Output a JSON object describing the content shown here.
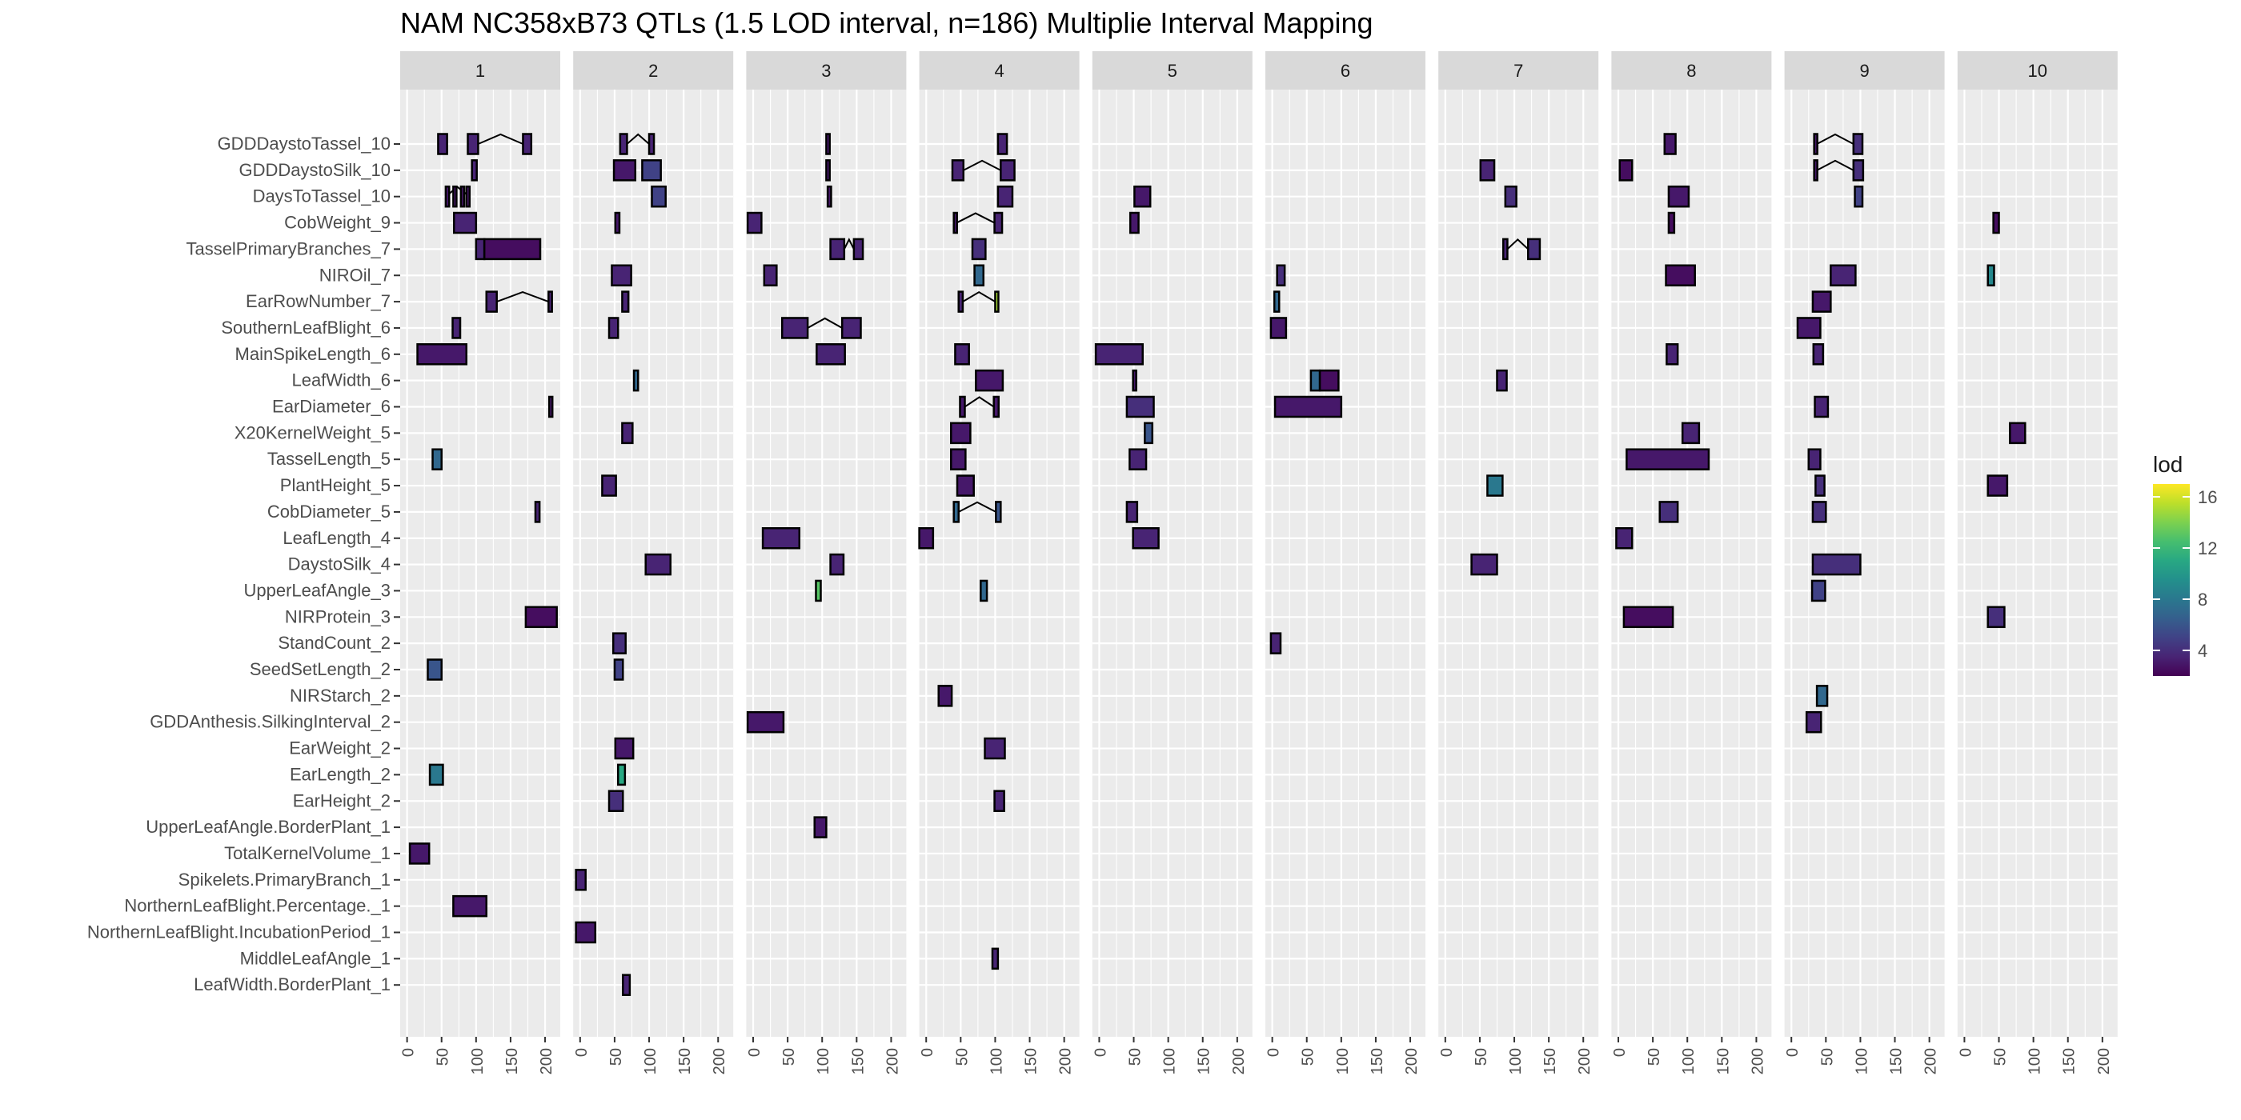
{
  "chart_data": {
    "type": "interval-facets",
    "title": "NAM NC358xB73 QTLs (1.5 LOD interval, n=186) Multiplie Interval Mapping",
    "panels": [
      "1",
      "2",
      "3",
      "4",
      "5",
      "6",
      "7",
      "8",
      "9",
      "10"
    ],
    "x_ticks": [
      0,
      50,
      100,
      150,
      200
    ],
    "xlim": [
      -10,
      222
    ],
    "traits": [
      "GDDDaystoTassel_10",
      "GDDDaystoSilk_10",
      "DaysToTassel_10",
      "CobWeight_9",
      "TasselPrimaryBranches_7",
      "NIROil_7",
      "EarRowNumber_7",
      "SouthernLeafBlight_6",
      "MainSpikeLength_6",
      "LeafWidth_6",
      "EarDiameter_6",
      "X20KernelWeight_5",
      "TasselLength_5",
      "PlantHeight_5",
      "CobDiameter_5",
      "LeafLength_4",
      "DaystoSilk_4",
      "UpperLeafAngle_3",
      "NIRProtein_3",
      "StandCount_2",
      "SeedSetLength_2",
      "NIRStarch_2",
      "GDDAnthesis.SilkingInterval_2",
      "EarWeight_2",
      "EarLength_2",
      "EarHeight_2",
      "UpperLeafAngle.BorderPlant_1",
      "TotalKernelVolume_1",
      "Spikelets.PrimaryBranch_1",
      "NorthernLeafBlight.Percentage._1",
      "NorthernLeafBlight.IncubationPeriod_1",
      "MiddleLeafAngle_1",
      "LeafWidth.BorderPlant_1"
    ],
    "legend": {
      "title": "lod",
      "ticks": [
        4,
        8,
        12,
        16
      ],
      "range": [
        2,
        17
      ],
      "placement": "right"
    },
    "intervals": [
      {
        "p": 1,
        "t": 0,
        "s": 45,
        "e": 58,
        "lod": 3.5
      },
      {
        "p": 1,
        "t": 0,
        "s": 88,
        "e": 103,
        "lod": 3.5
      },
      {
        "p": 1,
        "t": 0,
        "s": 168,
        "e": 180,
        "lod": 3.5
      },
      {
        "p": 1,
        "t": 1,
        "s": 94,
        "e": 101,
        "lod": 3.5
      },
      {
        "p": 1,
        "t": 2,
        "s": 56,
        "e": 61,
        "lod": 3
      },
      {
        "p": 1,
        "t": 2,
        "s": 67,
        "e": 71,
        "lod": 3
      },
      {
        "p": 1,
        "t": 2,
        "s": 78,
        "e": 82,
        "lod": 3
      },
      {
        "p": 1,
        "t": 2,
        "s": 86,
        "e": 90,
        "lod": 3
      },
      {
        "p": 1,
        "t": 3,
        "s": 68,
        "e": 100,
        "lod": 3.5
      },
      {
        "p": 1,
        "t": 4,
        "s": 100,
        "e": 112,
        "lod": 3.5
      },
      {
        "p": 1,
        "t": 4,
        "s": 112,
        "e": 193,
        "lod": 2.5
      },
      {
        "p": 1,
        "t": 6,
        "s": 115,
        "e": 130,
        "lod": 3.5
      },
      {
        "p": 1,
        "t": 6,
        "s": 205,
        "e": 210,
        "lod": 3.5
      },
      {
        "p": 1,
        "t": 7,
        "s": 66,
        "e": 77,
        "lod": 3.5
      },
      {
        "p": 1,
        "t": 8,
        "s": 15,
        "e": 86,
        "lod": 3
      },
      {
        "p": 1,
        "t": 10,
        "s": 206,
        "e": 210,
        "lod": 3
      },
      {
        "p": 1,
        "t": 12,
        "s": 37,
        "e": 50,
        "lod": 7
      },
      {
        "p": 1,
        "t": 14,
        "s": 186,
        "e": 192,
        "lod": 3.5
      },
      {
        "p": 1,
        "t": 18,
        "s": 172,
        "e": 217,
        "lod": 2.5
      },
      {
        "p": 1,
        "t": 20,
        "s": 30,
        "e": 50,
        "lod": 6
      },
      {
        "p": 1,
        "t": 24,
        "s": 33,
        "e": 52,
        "lod": 8
      },
      {
        "p": 1,
        "t": 27,
        "s": 4,
        "e": 32,
        "lod": 3
      },
      {
        "p": 1,
        "t": 29,
        "s": 67,
        "e": 115,
        "lod": 3
      },
      {
        "p": 2,
        "t": 0,
        "s": 58,
        "e": 68,
        "lod": 3.5
      },
      {
        "p": 2,
        "t": 0,
        "s": 100,
        "e": 107,
        "lod": 3.5
      },
      {
        "p": 2,
        "t": 1,
        "s": 49,
        "e": 80,
        "lod": 3
      },
      {
        "p": 2,
        "t": 1,
        "s": 90,
        "e": 117,
        "lod": 5
      },
      {
        "p": 2,
        "t": 2,
        "s": 104,
        "e": 124,
        "lod": 5
      },
      {
        "p": 2,
        "t": 3,
        "s": 51,
        "e": 57,
        "lod": 3
      },
      {
        "p": 2,
        "t": 5,
        "s": 46,
        "e": 74,
        "lod": 3.5
      },
      {
        "p": 2,
        "t": 6,
        "s": 61,
        "e": 70,
        "lod": 3.5
      },
      {
        "p": 2,
        "t": 7,
        "s": 42,
        "e": 55,
        "lod": 3.5
      },
      {
        "p": 2,
        "t": 9,
        "s": 78,
        "e": 84,
        "lod": 7
      },
      {
        "p": 2,
        "t": 11,
        "s": 61,
        "e": 76,
        "lod": 3.5
      },
      {
        "p": 2,
        "t": 13,
        "s": 32,
        "e": 52,
        "lod": 3.5
      },
      {
        "p": 2,
        "t": 16,
        "s": 95,
        "e": 131,
        "lod": 3.5
      },
      {
        "p": 2,
        "t": 19,
        "s": 48,
        "e": 66,
        "lod": 4
      },
      {
        "p": 2,
        "t": 20,
        "s": 50,
        "e": 62,
        "lod": 5
      },
      {
        "p": 2,
        "t": 23,
        "s": 51,
        "e": 77,
        "lod": 3
      },
      {
        "p": 2,
        "t": 24,
        "s": 55,
        "e": 65,
        "lod": 11
      },
      {
        "p": 2,
        "t": 25,
        "s": 42,
        "e": 62,
        "lod": 4
      },
      {
        "p": 2,
        "t": 28,
        "s": -6,
        "e": 8,
        "lod": 3.5
      },
      {
        "p": 2,
        "t": 30,
        "s": -6,
        "e": 22,
        "lod": 3
      },
      {
        "p": 2,
        "t": 32,
        "s": 62,
        "e": 72,
        "lod": 3.5
      },
      {
        "p": 3,
        "t": 0,
        "s": 106,
        "e": 111,
        "lod": 3
      },
      {
        "p": 3,
        "t": 1,
        "s": 106,
        "e": 111,
        "lod": 3
      },
      {
        "p": 3,
        "t": 2,
        "s": 108,
        "e": 113,
        "lod": 3
      },
      {
        "p": 3,
        "t": 3,
        "s": -8,
        "e": 12,
        "lod": 3.5
      },
      {
        "p": 3,
        "t": 4,
        "s": 112,
        "e": 132,
        "lod": 3.5
      },
      {
        "p": 3,
        "t": 4,
        "s": 146,
        "e": 159,
        "lod": 3.5
      },
      {
        "p": 3,
        "t": 5,
        "s": 16,
        "e": 34,
        "lod": 3.5
      },
      {
        "p": 3,
        "t": 7,
        "s": 42,
        "e": 79,
        "lod": 3.5
      },
      {
        "p": 3,
        "t": 7,
        "s": 129,
        "e": 156,
        "lod": 3.5
      },
      {
        "p": 3,
        "t": 8,
        "s": 92,
        "e": 133,
        "lod": 3.5
      },
      {
        "p": 3,
        "t": 15,
        "s": 14,
        "e": 67,
        "lod": 3.5
      },
      {
        "p": 3,
        "t": 16,
        "s": 112,
        "e": 131,
        "lod": 3.5
      },
      {
        "p": 3,
        "t": 17,
        "s": 91,
        "e": 98,
        "lod": 13
      },
      {
        "p": 3,
        "t": 22,
        "s": -8,
        "e": 44,
        "lod": 3
      },
      {
        "p": 3,
        "t": 26,
        "s": 89,
        "e": 106,
        "lod": 3
      },
      {
        "p": 4,
        "t": 0,
        "s": 104,
        "e": 117,
        "lod": 3.5
      },
      {
        "p": 4,
        "t": 1,
        "s": 38,
        "e": 54,
        "lod": 3.5
      },
      {
        "p": 4,
        "t": 1,
        "s": 108,
        "e": 128,
        "lod": 3.5
      },
      {
        "p": 4,
        "t": 2,
        "s": 104,
        "e": 125,
        "lod": 3.5
      },
      {
        "p": 4,
        "t": 3,
        "s": 40,
        "e": 44,
        "lod": 3
      },
      {
        "p": 4,
        "t": 3,
        "s": 99,
        "e": 110,
        "lod": 3.5
      },
      {
        "p": 4,
        "t": 4,
        "s": 67,
        "e": 86,
        "lod": 4
      },
      {
        "p": 4,
        "t": 5,
        "s": 70,
        "e": 83,
        "lod": 7
      },
      {
        "p": 4,
        "t": 6,
        "s": 47,
        "e": 53,
        "lod": 3.5
      },
      {
        "p": 4,
        "t": 6,
        "s": 100,
        "e": 104,
        "lod": 15
      },
      {
        "p": 4,
        "t": 8,
        "s": 42,
        "e": 62,
        "lod": 3.5
      },
      {
        "p": 4,
        "t": 9,
        "s": 72,
        "e": 111,
        "lod": 3
      },
      {
        "p": 4,
        "t": 10,
        "s": 49,
        "e": 56,
        "lod": 3
      },
      {
        "p": 4,
        "t": 10,
        "s": 98,
        "e": 105,
        "lod": 3
      },
      {
        "p": 4,
        "t": 11,
        "s": 36,
        "e": 64,
        "lod": 3
      },
      {
        "p": 4,
        "t": 12,
        "s": 36,
        "e": 57,
        "lod": 3
      },
      {
        "p": 4,
        "t": 13,
        "s": 45,
        "e": 69,
        "lod": 3
      },
      {
        "p": 4,
        "t": 14,
        "s": 40,
        "e": 47,
        "lod": 7
      },
      {
        "p": 4,
        "t": 14,
        "s": 101,
        "e": 108,
        "lod": 6
      },
      {
        "p": 4,
        "t": 15,
        "s": -10,
        "e": 10,
        "lod": 3
      },
      {
        "p": 4,
        "t": 17,
        "s": 79,
        "e": 88,
        "lod": 7
      },
      {
        "p": 4,
        "t": 21,
        "s": 18,
        "e": 37,
        "lod": 3
      },
      {
        "p": 4,
        "t": 23,
        "s": 85,
        "e": 114,
        "lod": 3.5
      },
      {
        "p": 4,
        "t": 25,
        "s": 99,
        "e": 113,
        "lod": 3.5
      },
      {
        "p": 4,
        "t": 31,
        "s": 96,
        "e": 104,
        "lod": 3.5
      },
      {
        "p": 5,
        "t": 2,
        "s": 51,
        "e": 74,
        "lod": 3
      },
      {
        "p": 5,
        "t": 3,
        "s": 45,
        "e": 57,
        "lod": 3
      },
      {
        "p": 5,
        "t": 8,
        "s": -5,
        "e": 63,
        "lod": 3.5
      },
      {
        "p": 5,
        "t": 9,
        "s": 49,
        "e": 53,
        "lod": 3
      },
      {
        "p": 5,
        "t": 10,
        "s": 40,
        "e": 79,
        "lod": 4
      },
      {
        "p": 5,
        "t": 11,
        "s": 66,
        "e": 77,
        "lod": 6
      },
      {
        "p": 5,
        "t": 12,
        "s": 44,
        "e": 68,
        "lod": 3.5
      },
      {
        "p": 5,
        "t": 14,
        "s": 40,
        "e": 55,
        "lod": 3.5
      },
      {
        "p": 5,
        "t": 15,
        "s": 49,
        "e": 86,
        "lod": 3.5
      },
      {
        "p": 6,
        "t": 5,
        "s": 7,
        "e": 18,
        "lod": 4
      },
      {
        "p": 6,
        "t": 6,
        "s": 3,
        "e": 10,
        "lod": 7
      },
      {
        "p": 6,
        "t": 7,
        "s": -2,
        "e": 20,
        "lod": 3
      },
      {
        "p": 6,
        "t": 9,
        "s": 56,
        "e": 69,
        "lod": 7
      },
      {
        "p": 6,
        "t": 9,
        "s": 69,
        "e": 96,
        "lod": 2.5
      },
      {
        "p": 6,
        "t": 10,
        "s": 4,
        "e": 100,
        "lod": 3
      },
      {
        "p": 6,
        "t": 19,
        "s": -2,
        "e": 12,
        "lod": 3.5
      },
      {
        "p": 7,
        "t": 1,
        "s": 51,
        "e": 71,
        "lod": 3.5
      },
      {
        "p": 7,
        "t": 2,
        "s": 87,
        "e": 103,
        "lod": 4
      },
      {
        "p": 7,
        "t": 4,
        "s": 84,
        "e": 90,
        "lod": 3.5
      },
      {
        "p": 7,
        "t": 4,
        "s": 120,
        "e": 137,
        "lod": 4
      },
      {
        "p": 7,
        "t": 9,
        "s": 75,
        "e": 89,
        "lod": 3.5
      },
      {
        "p": 7,
        "t": 13,
        "s": 61,
        "e": 83,
        "lod": 8
      },
      {
        "p": 7,
        "t": 16,
        "s": 38,
        "e": 75,
        "lod": 3.5
      },
      {
        "p": 8,
        "t": 0,
        "s": 67,
        "e": 83,
        "lod": 3
      },
      {
        "p": 8,
        "t": 1,
        "s": 2,
        "e": 20,
        "lod": 2.5
      },
      {
        "p": 8,
        "t": 2,
        "s": 73,
        "e": 102,
        "lod": 3
      },
      {
        "p": 8,
        "t": 3,
        "s": 73,
        "e": 81,
        "lod": 2.5
      },
      {
        "p": 8,
        "t": 5,
        "s": 69,
        "e": 111,
        "lod": 2.5
      },
      {
        "p": 8,
        "t": 8,
        "s": 70,
        "e": 86,
        "lod": 3.5
      },
      {
        "p": 8,
        "t": 11,
        "s": 93,
        "e": 117,
        "lod": 3.5
      },
      {
        "p": 8,
        "t": 12,
        "s": 12,
        "e": 131,
        "lod": 3
      },
      {
        "p": 8,
        "t": 14,
        "s": 60,
        "e": 86,
        "lod": 4
      },
      {
        "p": 8,
        "t": 15,
        "s": -3,
        "e": 20,
        "lod": 3.5
      },
      {
        "p": 8,
        "t": 18,
        "s": 8,
        "e": 79,
        "lod": 2.5
      },
      {
        "p": 9,
        "t": 0,
        "s": 33,
        "e": 37,
        "lod": 3
      },
      {
        "p": 9,
        "t": 0,
        "s": 90,
        "e": 103,
        "lod": 4
      },
      {
        "p": 9,
        "t": 1,
        "s": 33,
        "e": 37,
        "lod": 3
      },
      {
        "p": 9,
        "t": 1,
        "s": 90,
        "e": 104,
        "lod": 4
      },
      {
        "p": 9,
        "t": 2,
        "s": 92,
        "e": 103,
        "lod": 5
      },
      {
        "p": 9,
        "t": 5,
        "s": 57,
        "e": 93,
        "lod": 3.5
      },
      {
        "p": 9,
        "t": 6,
        "s": 31,
        "e": 57,
        "lod": 3
      },
      {
        "p": 9,
        "t": 7,
        "s": 9,
        "e": 42,
        "lod": 3
      },
      {
        "p": 9,
        "t": 8,
        "s": 32,
        "e": 46,
        "lod": 3.5
      },
      {
        "p": 9,
        "t": 10,
        "s": 34,
        "e": 53,
        "lod": 3.5
      },
      {
        "p": 9,
        "t": 12,
        "s": 25,
        "e": 42,
        "lod": 3.5
      },
      {
        "p": 9,
        "t": 13,
        "s": 35,
        "e": 48,
        "lod": 4
      },
      {
        "p": 9,
        "t": 14,
        "s": 31,
        "e": 50,
        "lod": 4
      },
      {
        "p": 9,
        "t": 16,
        "s": 31,
        "e": 100,
        "lod": 4
      },
      {
        "p": 9,
        "t": 17,
        "s": 30,
        "e": 49,
        "lod": 5
      },
      {
        "p": 9,
        "t": 21,
        "s": 37,
        "e": 52,
        "lod": 7
      },
      {
        "p": 9,
        "t": 22,
        "s": 22,
        "e": 43,
        "lod": 3.5
      },
      {
        "p": 10,
        "t": 3,
        "s": 42,
        "e": 50,
        "lod": 2.5
      },
      {
        "p": 10,
        "t": 5,
        "s": 34,
        "e": 43,
        "lod": 9
      },
      {
        "p": 10,
        "t": 11,
        "s": 66,
        "e": 88,
        "lod": 3
      },
      {
        "p": 10,
        "t": 13,
        "s": 34,
        "e": 62,
        "lod": 3
      },
      {
        "p": 10,
        "t": 18,
        "s": 34,
        "e": 58,
        "lod": 4
      }
    ],
    "links": [
      {
        "p": 1,
        "t": 0,
        "from": 103,
        "to": 168
      },
      {
        "p": 1,
        "t": 2,
        "from": 56,
        "to": 90
      },
      {
        "p": 1,
        "t": 6,
        "from": 130,
        "to": 205
      },
      {
        "p": 2,
        "t": 0,
        "from": 68,
        "to": 100
      },
      {
        "p": 3,
        "t": 4,
        "from": 132,
        "to": 146
      },
      {
        "p": 3,
        "t": 7,
        "from": 79,
        "to": 129
      },
      {
        "p": 4,
        "t": 1,
        "from": 54,
        "to": 108
      },
      {
        "p": 4,
        "t": 3,
        "from": 44,
        "to": 99
      },
      {
        "p": 4,
        "t": 6,
        "from": 53,
        "to": 100
      },
      {
        "p": 4,
        "t": 10,
        "from": 56,
        "to": 98
      },
      {
        "p": 4,
        "t": 14,
        "from": 47,
        "to": 101
      },
      {
        "p": 7,
        "t": 4,
        "from": 90,
        "to": 120
      },
      {
        "p": 9,
        "t": 0,
        "from": 37,
        "to": 90
      },
      {
        "p": 9,
        "t": 1,
        "from": 37,
        "to": 90
      }
    ]
  }
}
